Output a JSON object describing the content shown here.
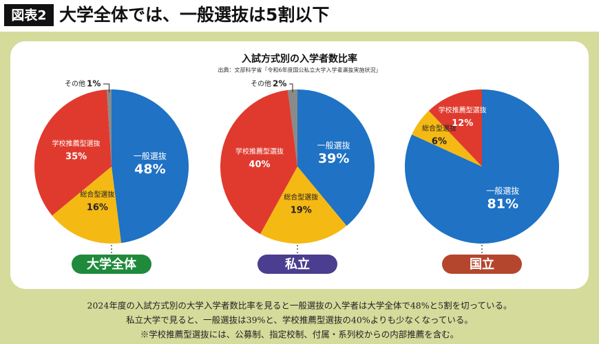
{
  "header": {
    "badge": "図表2",
    "title": "大学全体では、一般選抜は5割以下"
  },
  "panel": {
    "title": "入試方式別の入学者数比率",
    "source": "出典：文部科学省「令和6年度国公私立大学入学者選抜実施状況」"
  },
  "chart_data": [
    {
      "type": "pie",
      "title": "大学全体",
      "title_color": "#1f8a3b",
      "categories": [
        "一般選抜",
        "総合型選抜",
        "学校推薦型選抜",
        "その他"
      ],
      "values": [
        48,
        16,
        35,
        1
      ],
      "value_labels": [
        "48%",
        "16%",
        "35%",
        "1%"
      ],
      "colors": [
        "#1f72c4",
        "#f5b914",
        "#e03a2e",
        "#8a8a8a"
      ]
    },
    {
      "type": "pie",
      "title": "私立",
      "title_color": "#4b3d8f",
      "categories": [
        "一般選抜",
        "総合型選抜",
        "学校推薦型選抜",
        "その他"
      ],
      "values": [
        39,
        19,
        40,
        2
      ],
      "value_labels": [
        "39%",
        "19%",
        "40%",
        "2%"
      ],
      "colors": [
        "#1f72c4",
        "#f5b914",
        "#e03a2e",
        "#8a8a8a"
      ]
    },
    {
      "type": "pie",
      "title": "国立",
      "title_color": "#b5462e",
      "categories": [
        "一般選抜",
        "総合型選抜",
        "学校推薦型選抜"
      ],
      "values": [
        81,
        6,
        12
      ],
      "value_labels": [
        "81%",
        "6%",
        "12%"
      ],
      "colors": [
        "#1f72c4",
        "#f5b914",
        "#e03a2e"
      ]
    }
  ],
  "notes": [
    "2024年度の入試方式別の大学入学者数比率を見ると一般選抜の入学者は大学全体で48%と5割を切っている。",
    "私立大学で見ると、一般選抜は39%と、学校推薦型選抜の40%よりも少なくなっている。",
    "※学校推薦型選抜には、公募制、指定校制、付属・系列校からの内部推薦を含む。"
  ]
}
